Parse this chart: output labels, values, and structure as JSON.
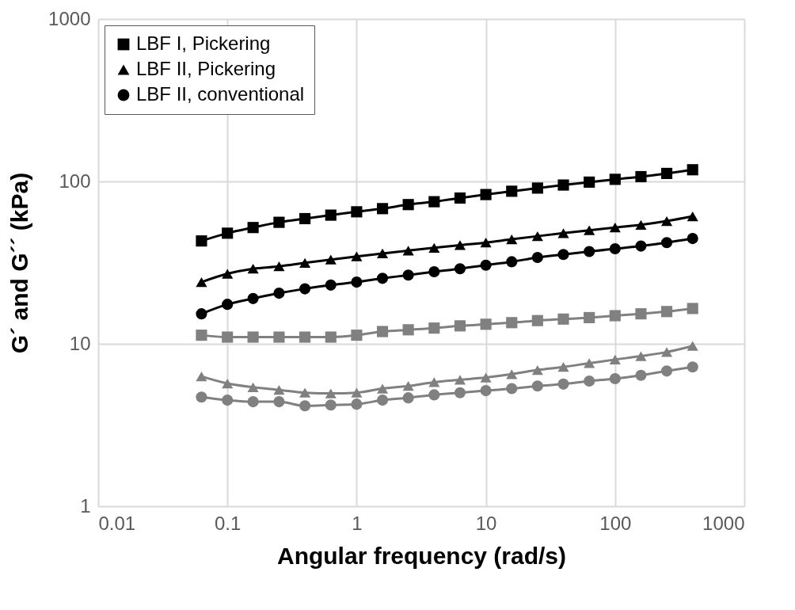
{
  "chart_data": {
    "type": "line",
    "xlabel": "Angular frequency (rad/s)",
    "ylabel": "G´ and G´´ (kPa)",
    "log": "xy",
    "grid": true,
    "legend": "top left",
    "x": [
      0.063,
      0.1,
      0.158,
      0.251,
      0.398,
      0.631,
      1,
      1.585,
      2.51,
      3.98,
      6.31,
      10,
      15.85,
      25.1,
      39.8,
      63.1,
      100,
      158.5,
      251,
      398
    ],
    "xlim": [
      0.01,
      1000
    ],
    "xticks": [
      0.01,
      0.1,
      1,
      10,
      100,
      1000
    ],
    "ylim": [
      1,
      1000
    ],
    "yticks": [
      1,
      10,
      100,
      1000
    ],
    "series": [
      {
        "name": "LBF I, Pickering",
        "color": "#000000",
        "marker": "square",
        "values": [
          43,
          48,
          52,
          56,
          59,
          62,
          65,
          68,
          72,
          75,
          79,
          83,
          87,
          91,
          95,
          99,
          103,
          107,
          112,
          118
        ]
      },
      {
        "name": "LBF II, Pickering",
        "color": "#000000",
        "marker": "triangle",
        "values": [
          24,
          27,
          29,
          30,
          31.5,
          33,
          34.5,
          36,
          37.5,
          39,
          40.5,
          42,
          44,
          46,
          48,
          50,
          52,
          54,
          57,
          61
        ]
      },
      {
        "name": "LBF II, conventional",
        "color": "#000000",
        "marker": "circle",
        "values": [
          15.3,
          17.5,
          19,
          20.5,
          21.8,
          23,
          24,
          25.3,
          26.5,
          27.8,
          29,
          30.5,
          32,
          34,
          35.5,
          37,
          38.5,
          40,
          42,
          44.5
        ]
      },
      {
        "color": "#808080",
        "marker": "square",
        "values": [
          11.3,
          11,
          11,
          11,
          11,
          11,
          11.3,
          11.9,
          12.2,
          12.5,
          12.9,
          13.2,
          13.5,
          13.9,
          14.2,
          14.5,
          14.9,
          15.3,
          15.8,
          16.5
        ]
      },
      {
        "color": "#808080",
        "marker": "triangle",
        "values": [
          6.3,
          5.7,
          5.4,
          5.2,
          5,
          4.95,
          5,
          5.3,
          5.5,
          5.8,
          6,
          6.2,
          6.5,
          6.9,
          7.2,
          7.6,
          8,
          8.4,
          8.9,
          9.7
        ]
      },
      {
        "color": "#808080",
        "marker": "circle",
        "values": [
          4.7,
          4.5,
          4.4,
          4.4,
          4.15,
          4.2,
          4.25,
          4.5,
          4.65,
          4.85,
          5,
          5.15,
          5.3,
          5.5,
          5.65,
          5.9,
          6.1,
          6.4,
          6.8,
          7.2
        ]
      }
    ]
  }
}
